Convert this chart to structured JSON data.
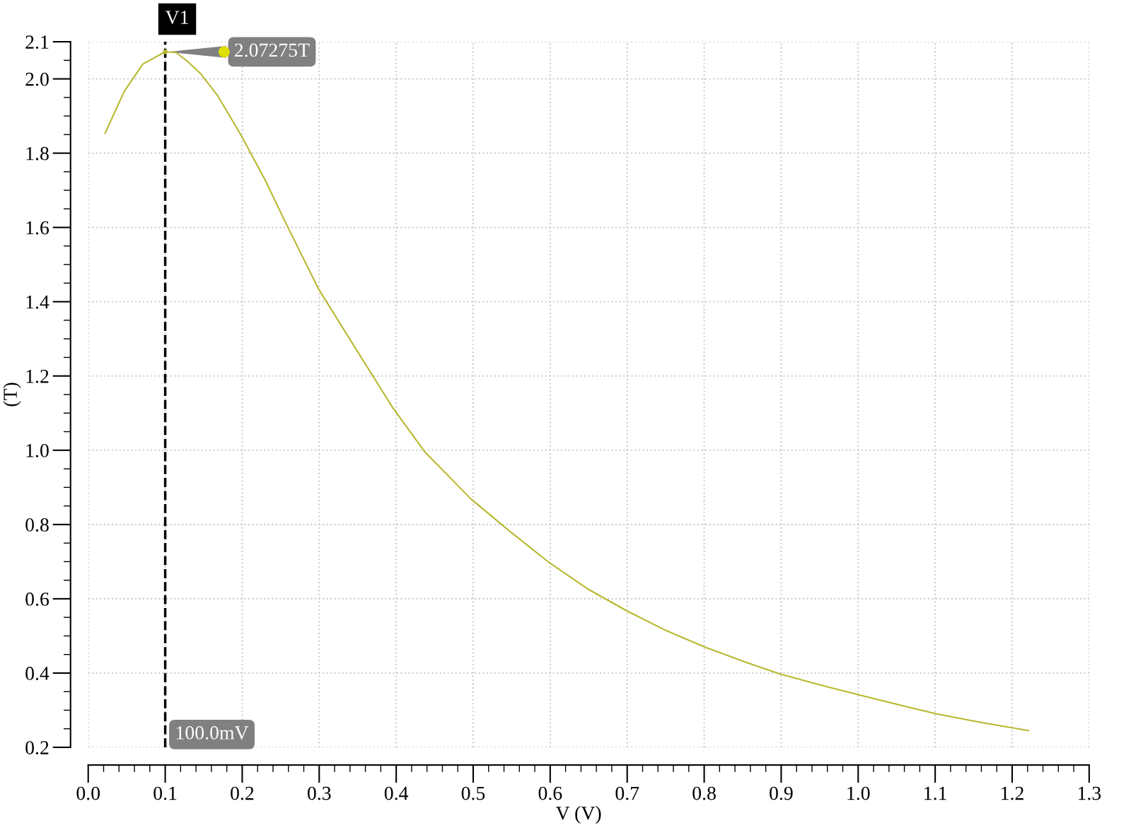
{
  "chart_data": {
    "type": "line",
    "xlabel": "V (V)",
    "ylabel": "(T)",
    "x": [
      0.022,
      0.047,
      0.071,
      0.1,
      0.114,
      0.128,
      0.146,
      0.168,
      0.197,
      0.23,
      0.257,
      0.299,
      0.34,
      0.396,
      0.437,
      0.497,
      0.548,
      0.599,
      0.65,
      0.7,
      0.751,
      0.802,
      0.853,
      0.899,
      0.954,
      1.0,
      1.056,
      1.102,
      1.157,
      1.221
    ],
    "series": [
      {
        "color": "#b8b830",
        "values": [
          1.854,
          1.967,
          2.04,
          2.073,
          2.071,
          2.049,
          2.014,
          1.955,
          1.854,
          1.727,
          1.61,
          1.435,
          1.298,
          1.113,
          0.996,
          0.869,
          0.781,
          0.697,
          0.625,
          0.567,
          0.514,
          0.469,
          0.43,
          0.397,
          0.366,
          0.342,
          0.313,
          0.29,
          0.268,
          0.245
        ]
      }
    ],
    "xlim": [
      0,
      1.3
    ],
    "ylim": [
      0.2,
      2.1
    ],
    "xticks": [
      {
        "value": 0,
        "label": "0.0"
      },
      0.1,
      0.2,
      0.3,
      0.4,
      0.5,
      0.6,
      0.7,
      0.8,
      0.9,
      {
        "value": 1,
        "label": "1.0"
      },
      1.1,
      1.2,
      1.3
    ],
    "yticks": [
      0.2,
      0.4,
      0.6,
      0.8,
      {
        "value": 1,
        "label": "1.0"
      },
      1.2,
      1.4,
      1.6,
      1.8,
      {
        "value": 2,
        "label": "2.0"
      },
      2.1
    ],
    "ref_lines": [
      {
        "axis": "x",
        "value": 0.1,
        "label": "V1",
        "color": "#000000",
        "line_style": "dashed"
      }
    ],
    "annotations": [
      {
        "text": "2.07275T",
        "x": 0.1,
        "y": 2.07275
      },
      {
        "text": "100.0mV",
        "x": 0.1,
        "y": 0.2
      }
    ],
    "grid": true,
    "marker": "none",
    "line_style": "solid"
  }
}
